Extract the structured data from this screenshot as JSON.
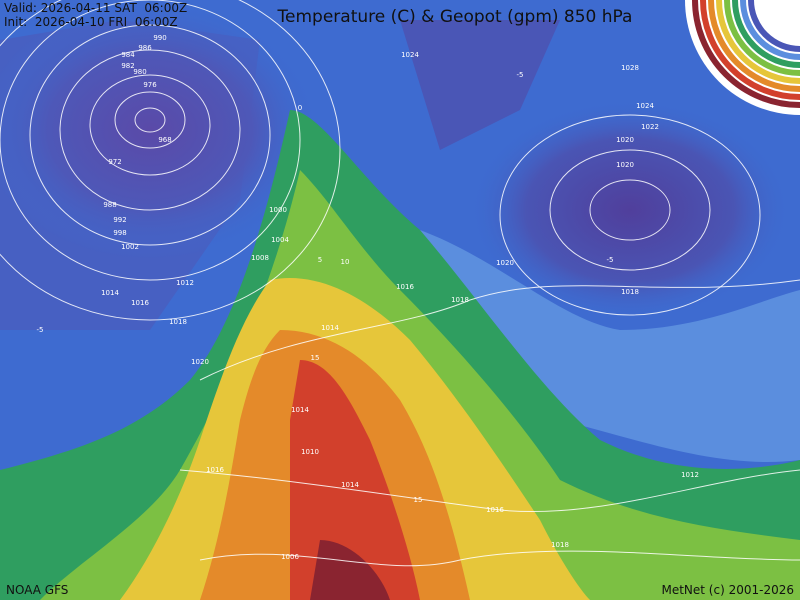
{
  "header": {
    "valid": "Valid: 2026-04-11 SAT  06:00Z",
    "init": "Init:  2026-04-10 FRI  06:00Z",
    "title": "Temperature (C) & Geopot (gpm) 850 hPa"
  },
  "footer": {
    "source": "NOAA GFS",
    "credit": "MetNet (c) 2001-2026"
  },
  "contour_labels": [
    "990",
    "986",
    "984",
    "982",
    "980",
    "976",
    "968",
    "972",
    "988",
    "992",
    "998",
    "1002",
    "1014",
    "1016",
    "1012",
    "1018",
    "1020",
    "1022",
    "1024",
    "1028",
    "1006",
    "1004",
    "1010",
    "1008",
    "1000"
  ],
  "temperature_labels": [
    "-5",
    "0",
    "5",
    "10",
    "15"
  ]
}
